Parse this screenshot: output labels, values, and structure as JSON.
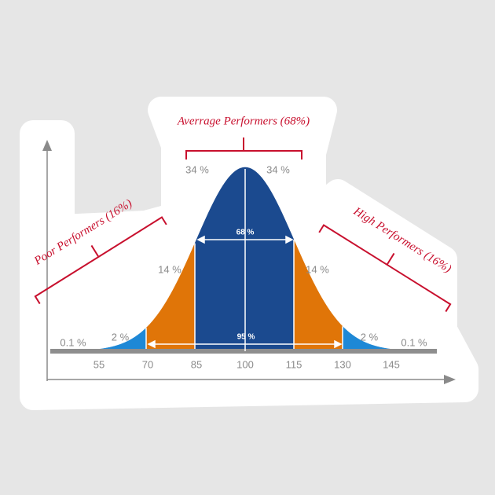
{
  "groups": {
    "average": "Averrage Performers (68%)",
    "poor": "Poor Performers (16%)",
    "high": "High Performers (16%)"
  },
  "band_labels": {
    "left_34": "34 %",
    "right_34": "34 %",
    "left_14": "14 %",
    "right_14": "14 %",
    "left_2": "2 %",
    "right_2": "2 %",
    "left_01": "0.1 %",
    "right_01": "0.1 %"
  },
  "range_labels": {
    "inner": "68 %",
    "outer": "95 %"
  },
  "x_ticks": [
    "55",
    "70",
    "85",
    "100",
    "115",
    "130",
    "145"
  ]
}
